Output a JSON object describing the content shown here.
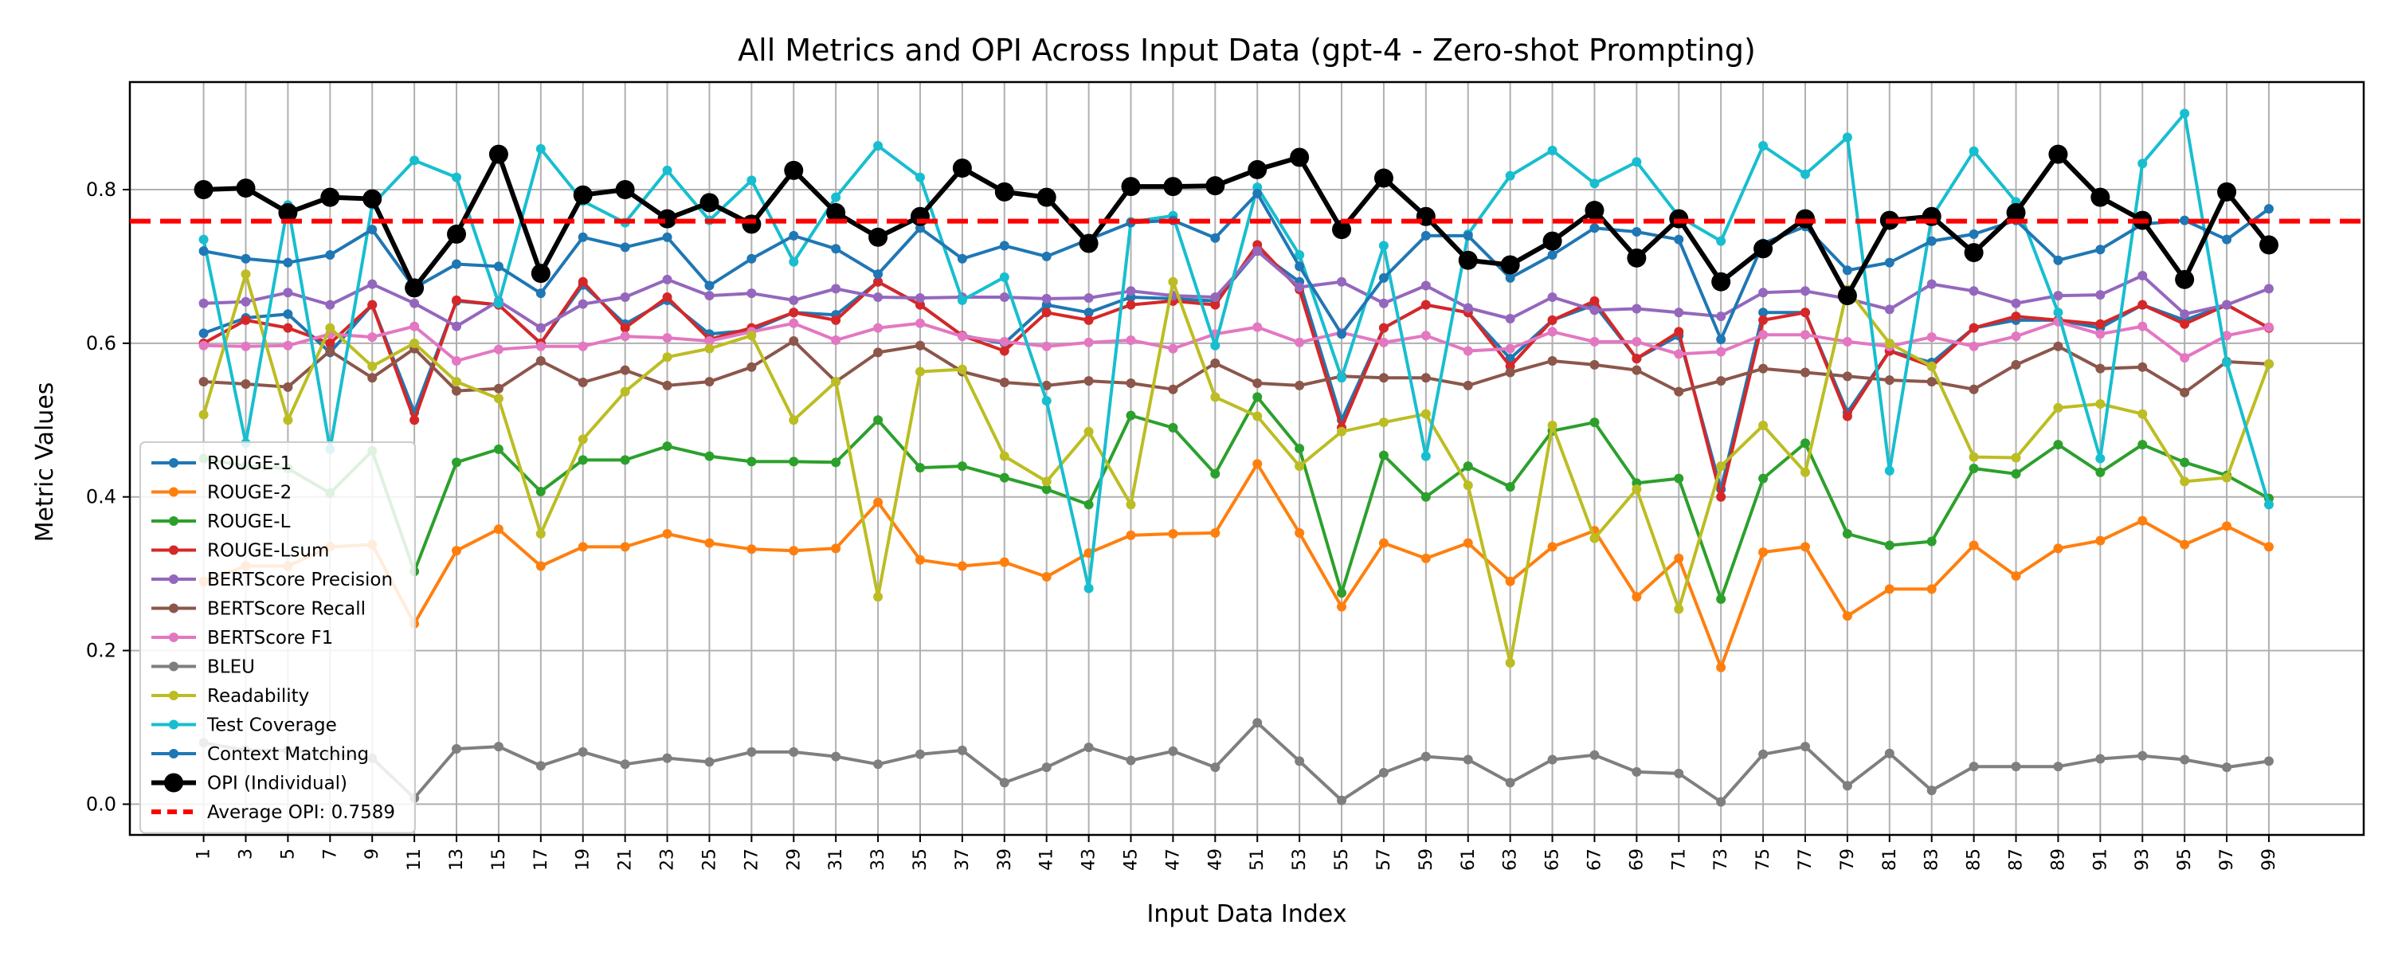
{
  "chart_data": {
    "type": "line",
    "title": "All Metrics and OPI Across Input Data (gpt-4 - Zero-shot Prompting)",
    "xlabel": "Input Data Index",
    "ylabel": "Metric Values",
    "xlim": [
      -2.5,
      103.5
    ],
    "ylim": [
      -0.04,
      0.94
    ],
    "x_ticks": [
      1,
      3,
      5,
      7,
      9,
      11,
      13,
      15,
      17,
      19,
      21,
      23,
      25,
      27,
      29,
      31,
      33,
      35,
      37,
      39,
      41,
      43,
      45,
      47,
      49,
      51,
      53,
      55,
      57,
      59,
      61,
      63,
      65,
      67,
      69,
      71,
      73,
      75,
      77,
      79,
      81,
      83,
      85,
      87,
      89,
      91,
      93,
      95,
      97,
      99
    ],
    "y_ticks": [
      "0.0",
      "0.2",
      "0.4",
      "0.6",
      "0.8"
    ],
    "grid": true,
    "legend_position": "lower-left",
    "x": [
      1,
      3,
      5,
      7,
      9,
      11,
      13,
      15,
      17,
      19,
      21,
      23,
      25,
      27,
      29,
      31,
      33,
      35,
      37,
      39,
      41,
      43,
      45,
      47,
      49,
      51,
      53,
      55,
      57,
      59,
      61,
      63,
      65,
      67,
      69,
      71,
      73,
      75,
      77,
      79,
      81,
      83,
      85,
      87,
      89,
      91,
      93,
      95,
      97,
      99
    ],
    "series": [
      {
        "name": "ROUGE-1",
        "color": "#1f77b4",
        "values": [
          0.613,
          0.633,
          0.638,
          0.588,
          0.65,
          0.51,
          0.655,
          0.65,
          0.6,
          0.676,
          0.625,
          0.656,
          0.612,
          0.617,
          0.64,
          0.637,
          0.68,
          0.65,
          0.61,
          0.6,
          0.65,
          0.64,
          0.66,
          0.658,
          0.655,
          0.72,
          0.68,
          0.5,
          0.62,
          0.65,
          0.64,
          0.58,
          0.63,
          0.65,
          0.58,
          0.61,
          0.41,
          0.64,
          0.64,
          0.51,
          0.59,
          0.575,
          0.62,
          0.63,
          0.63,
          0.62,
          0.65,
          0.63,
          0.65,
          0.62
        ]
      },
      {
        "name": "ROUGE-2",
        "color": "#ff7f0e",
        "values": [
          0.29,
          0.31,
          0.31,
          0.335,
          0.338,
          0.235,
          0.33,
          0.358,
          0.31,
          0.335,
          0.335,
          0.352,
          0.34,
          0.332,
          0.33,
          0.333,
          0.393,
          0.318,
          0.31,
          0.315,
          0.296,
          0.327,
          0.35,
          0.352,
          0.353,
          0.443,
          0.353,
          0.257,
          0.34,
          0.32,
          0.34,
          0.29,
          0.335,
          0.356,
          0.27,
          0.32,
          0.178,
          0.328,
          0.335,
          0.245,
          0.28,
          0.28,
          0.337,
          0.297,
          0.333,
          0.343,
          0.369,
          0.338,
          0.362,
          0.335
        ]
      },
      {
        "name": "ROUGE-L",
        "color": "#2ca02c",
        "values": [
          0.45,
          0.44,
          0.437,
          0.405,
          0.46,
          0.303,
          0.445,
          0.462,
          0.407,
          0.448,
          0.448,
          0.466,
          0.453,
          0.446,
          0.446,
          0.445,
          0.5,
          0.438,
          0.44,
          0.425,
          0.41,
          0.39,
          0.506,
          0.49,
          0.43,
          0.53,
          0.463,
          0.275,
          0.454,
          0.4,
          0.44,
          0.413,
          0.486,
          0.497,
          0.418,
          0.424,
          0.267,
          0.424,
          0.47,
          0.352,
          0.337,
          0.342,
          0.437,
          0.43,
          0.468,
          0.432,
          0.468,
          0.445,
          0.428,
          0.398
        ]
      },
      {
        "name": "ROUGE-Lsum",
        "color": "#d62728",
        "values": [
          0.6,
          0.63,
          0.62,
          0.6,
          0.65,
          0.5,
          0.656,
          0.65,
          0.6,
          0.68,
          0.62,
          0.66,
          0.605,
          0.62,
          0.64,
          0.63,
          0.68,
          0.65,
          0.61,
          0.59,
          0.64,
          0.63,
          0.65,
          0.655,
          0.65,
          0.728,
          0.67,
          0.49,
          0.62,
          0.65,
          0.64,
          0.57,
          0.63,
          0.655,
          0.58,
          0.615,
          0.4,
          0.63,
          0.64,
          0.505,
          0.59,
          0.57,
          0.62,
          0.635,
          0.63,
          0.625,
          0.65,
          0.625,
          0.65,
          0.62
        ]
      },
      {
        "name": "BERTScore Precision",
        "color": "#9467bd",
        "values": [
          0.652,
          0.654,
          0.666,
          0.65,
          0.677,
          0.652,
          0.622,
          0.655,
          0.62,
          0.651,
          0.66,
          0.683,
          0.662,
          0.665,
          0.656,
          0.671,
          0.66,
          0.659,
          0.66,
          0.66,
          0.658,
          0.659,
          0.668,
          0.662,
          0.66,
          0.72,
          0.673,
          0.68,
          0.652,
          0.675,
          0.646,
          0.632,
          0.66,
          0.643,
          0.645,
          0.64,
          0.635,
          0.666,
          0.668,
          0.658,
          0.644,
          0.677,
          0.668,
          0.652,
          0.662,
          0.663,
          0.688,
          0.638,
          0.65,
          0.671
        ]
      },
      {
        "name": "BERTScore Recall",
        "color": "#8c564b",
        "values": [
          0.55,
          0.547,
          0.543,
          0.59,
          0.555,
          0.593,
          0.538,
          0.541,
          0.577,
          0.549,
          0.565,
          0.545,
          0.55,
          0.569,
          0.603,
          0.55,
          0.588,
          0.597,
          0.563,
          0.549,
          0.545,
          0.551,
          0.548,
          0.54,
          0.574,
          0.548,
          0.545,
          0.557,
          0.555,
          0.555,
          0.545,
          0.562,
          0.577,
          0.572,
          0.565,
          0.537,
          0.551,
          0.567,
          0.562,
          0.557,
          0.552,
          0.55,
          0.54,
          0.572,
          0.596,
          0.567,
          0.569,
          0.536,
          0.576,
          0.573
        ]
      },
      {
        "name": "BERTScore F1",
        "color": "#e377c2",
        "values": [
          0.597,
          0.596,
          0.597,
          0.612,
          0.608,
          0.622,
          0.577,
          0.592,
          0.596,
          0.596,
          0.609,
          0.607,
          0.603,
          0.615,
          0.626,
          0.604,
          0.62,
          0.626,
          0.609,
          0.602,
          0.596,
          0.601,
          0.604,
          0.593,
          0.612,
          0.621,
          0.601,
          0.614,
          0.601,
          0.61,
          0.59,
          0.593,
          0.615,
          0.602,
          0.602,
          0.586,
          0.589,
          0.611,
          0.611,
          0.602,
          0.596,
          0.608,
          0.596,
          0.609,
          0.628,
          0.612,
          0.622,
          0.581,
          0.61,
          0.621
        ]
      },
      {
        "name": "BLEU",
        "color": "#7f7f7f",
        "values": [
          0.08,
          0.07,
          0.07,
          0.065,
          0.06,
          0.008,
          0.072,
          0.075,
          0.05,
          0.068,
          0.052,
          0.06,
          0.055,
          0.068,
          0.068,
          0.062,
          0.052,
          0.065,
          0.07,
          0.028,
          0.048,
          0.074,
          0.057,
          0.069,
          0.048,
          0.106,
          0.056,
          0.005,
          0.041,
          0.062,
          0.058,
          0.028,
          0.058,
          0.064,
          0.042,
          0.04,
          0.003,
          0.065,
          0.075,
          0.024,
          0.066,
          0.018,
          0.049,
          0.049,
          0.049,
          0.059,
          0.063,
          0.058,
          0.048,
          0.056
        ]
      },
      {
        "name": "Readability",
        "color": "#bcbd22",
        "values": [
          0.507,
          0.69,
          0.5,
          0.62,
          0.57,
          0.6,
          0.55,
          0.528,
          0.352,
          0.475,
          0.537,
          0.582,
          0.593,
          0.61,
          0.5,
          0.55,
          0.27,
          0.563,
          0.566,
          0.453,
          0.42,
          0.485,
          0.39,
          0.68,
          0.53,
          0.505,
          0.44,
          0.485,
          0.497,
          0.508,
          0.415,
          0.184,
          0.493,
          0.346,
          0.41,
          0.254,
          0.44,
          0.493,
          0.432,
          0.67,
          0.6,
          0.57,
          0.452,
          0.451,
          0.516,
          0.521,
          0.508,
          0.42,
          0.425,
          0.573
        ]
      },
      {
        "name": "Test Coverage",
        "color": "#17becf",
        "values": [
          0.735,
          0.47,
          0.78,
          0.462,
          0.78,
          0.838,
          0.816,
          0.652,
          0.853,
          0.785,
          0.757,
          0.825,
          0.76,
          0.812,
          0.706,
          0.79,
          0.857,
          0.816,
          0.656,
          0.686,
          0.525,
          0.281,
          0.758,
          0.766,
          0.597,
          0.803,
          0.715,
          0.555,
          0.727,
          0.453,
          0.742,
          0.818,
          0.851,
          0.808,
          0.836,
          0.765,
          0.733,
          0.857,
          0.82,
          0.868,
          0.434,
          0.764,
          0.85,
          0.784,
          0.64,
          0.45,
          0.834,
          0.899,
          0.575,
          0.39
        ]
      },
      {
        "name": "Context Matching",
        "color": "#1f77b4",
        "values": [
          0.72,
          0.71,
          0.705,
          0.715,
          0.748,
          0.672,
          0.703,
          0.7,
          0.665,
          0.738,
          0.725,
          0.738,
          0.675,
          0.71,
          0.74,
          0.723,
          0.69,
          0.75,
          0.71,
          0.727,
          0.713,
          0.735,
          0.757,
          0.76,
          0.737,
          0.795,
          0.7,
          0.612,
          0.685,
          0.74,
          0.74,
          0.685,
          0.715,
          0.75,
          0.745,
          0.735,
          0.605,
          0.73,
          0.752,
          0.695,
          0.705,
          0.733,
          0.742,
          0.76,
          0.708,
          0.722,
          0.755,
          0.76,
          0.735,
          0.775
        ]
      },
      {
        "name": "OPI (Individual)",
        "color": "#000000",
        "values": [
          0.8,
          0.802,
          0.77,
          0.79,
          0.788,
          0.672,
          0.742,
          0.846,
          0.691,
          0.793,
          0.8,
          0.762,
          0.783,
          0.755,
          0.825,
          0.77,
          0.738,
          0.765,
          0.828,
          0.797,
          0.79,
          0.73,
          0.804,
          0.804,
          0.805,
          0.826,
          0.842,
          0.748,
          0.815,
          0.765,
          0.708,
          0.702,
          0.733,
          0.773,
          0.711,
          0.762,
          0.68,
          0.723,
          0.762,
          0.662,
          0.76,
          0.765,
          0.718,
          0.77,
          0.846,
          0.79,
          0.76,
          0.683,
          0.797,
          0.728
        ]
      }
    ],
    "reference_line": {
      "name": "Average OPI: 0.7589",
      "value": 0.7589,
      "color": "#ff0000"
    },
    "legend": [
      "ROUGE-1",
      "ROUGE-2",
      "ROUGE-L",
      "ROUGE-Lsum",
      "BERTScore Precision",
      "BERTScore Recall",
      "BERTScore F1",
      "BLEU",
      "Readability",
      "Test Coverage",
      "Context Matching",
      "OPI (Individual)",
      "Average OPI: 0.7589"
    ]
  }
}
